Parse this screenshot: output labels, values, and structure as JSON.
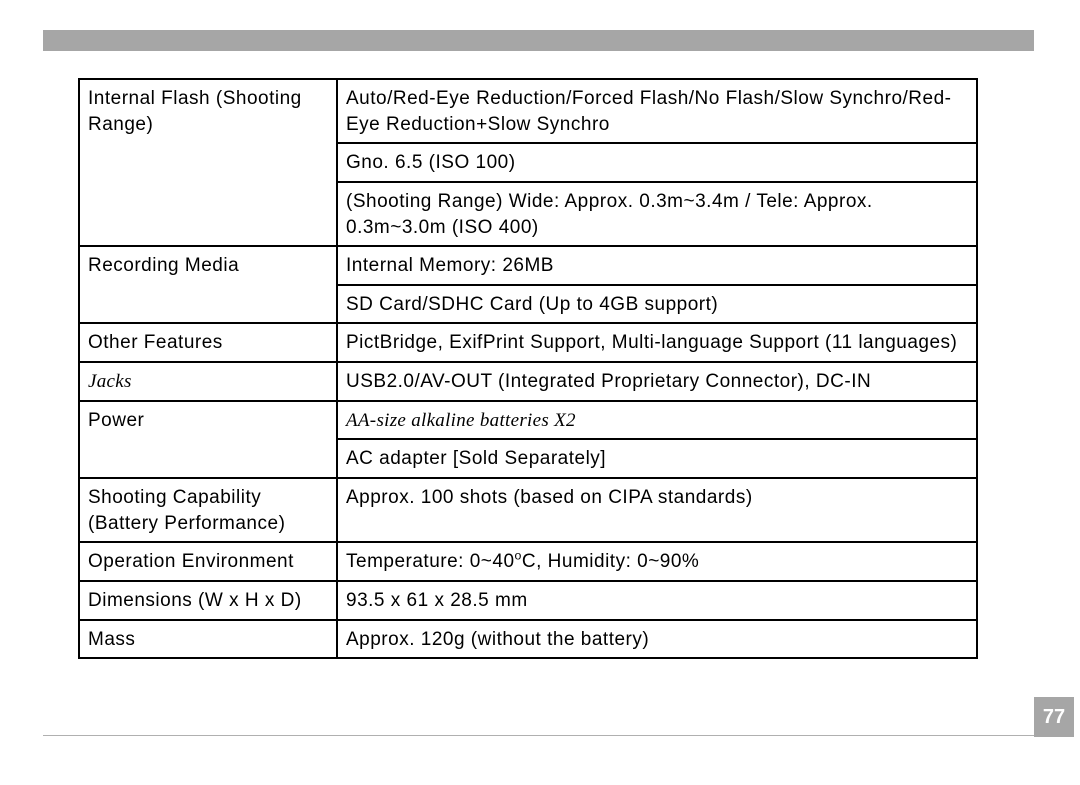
{
  "page_number": "77",
  "colors": {
    "bar_bg": "#a6a6a6",
    "page_num_fg": "#ffffff",
    "border": "#000000",
    "text": "#000000",
    "footer_line": "#b0b0b0"
  },
  "table": {
    "rows": [
      {
        "label": "Internal Flash (Shooting Range)",
        "label_rowspan": 3,
        "value": "Auto/Red-Eye Reduction/Forced Flash/No Flash/Slow Synchro/Red-Eye Reduction+Slow Synchro"
      },
      {
        "value": "Gno. 6.5 (ISO 100)"
      },
      {
        "value": "(Shooting Range) Wide: Approx. 0.3m~3.4m / Tele: Approx. 0.3m~3.0m (ISO 400)"
      },
      {
        "label": "Recording Media",
        "label_rowspan": 2,
        "value": "Internal Memory: 26MB"
      },
      {
        "value": "SD Card/SDHC Card (Up to 4GB support)"
      },
      {
        "label": "Other Features",
        "value": "PictBridge, ExifPrint Support, Multi-language Support (11 languages)"
      },
      {
        "label": "Jacks",
        "label_italic": true,
        "value": "USB2.0/AV-OUT (Integrated Proprietary Connector), DC-IN"
      },
      {
        "label": "Power",
        "label_rowspan": 2,
        "value": "AA-size alkaline batteries X2",
        "value_italic": true
      },
      {
        "value": "AC adapter [Sold Separately]"
      },
      {
        "label": "Shooting Capability\n(Battery Performance)",
        "value": "Approx. 100 shots (based on CIPA standards)"
      },
      {
        "label": "Operation Environment",
        "value_html": "Temperature: 0~40<sup>o</sup>C, Humidity: 0~90%"
      },
      {
        "label": "Dimensions (W x H x D)",
        "value": "93.5 x 61 x 28.5 mm"
      },
      {
        "label": "Mass",
        "value": "Approx. 120g (without the battery)"
      }
    ]
  }
}
